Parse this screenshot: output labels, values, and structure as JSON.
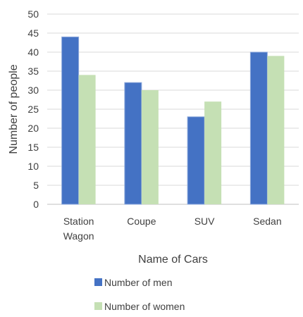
{
  "chart_data": {
    "type": "bar",
    "categories": [
      [
        "Station",
        "Wagon"
      ],
      [
        "Coupe"
      ],
      [
        "SUV"
      ],
      [
        "Sedan"
      ]
    ],
    "series": [
      {
        "name": "Number of men",
        "values": [
          44,
          32,
          23,
          40
        ],
        "color": "#4472C4"
      },
      {
        "name": "Number of women",
        "values": [
          34,
          30,
          27,
          39
        ],
        "color": "#C5E0B4"
      }
    ],
    "title": "",
    "xlabel": "Name of Cars",
    "ylabel": "Number of people",
    "ylim": [
      0,
      50
    ],
    "yticks": [
      0,
      5,
      10,
      15,
      20,
      25,
      30,
      35,
      40,
      45,
      50
    ],
    "grid": true,
    "legend_position": "bottom",
    "colors": {
      "grid": "#D9D9D9",
      "axis": "#BFBFBF",
      "text": "#404040"
    }
  }
}
